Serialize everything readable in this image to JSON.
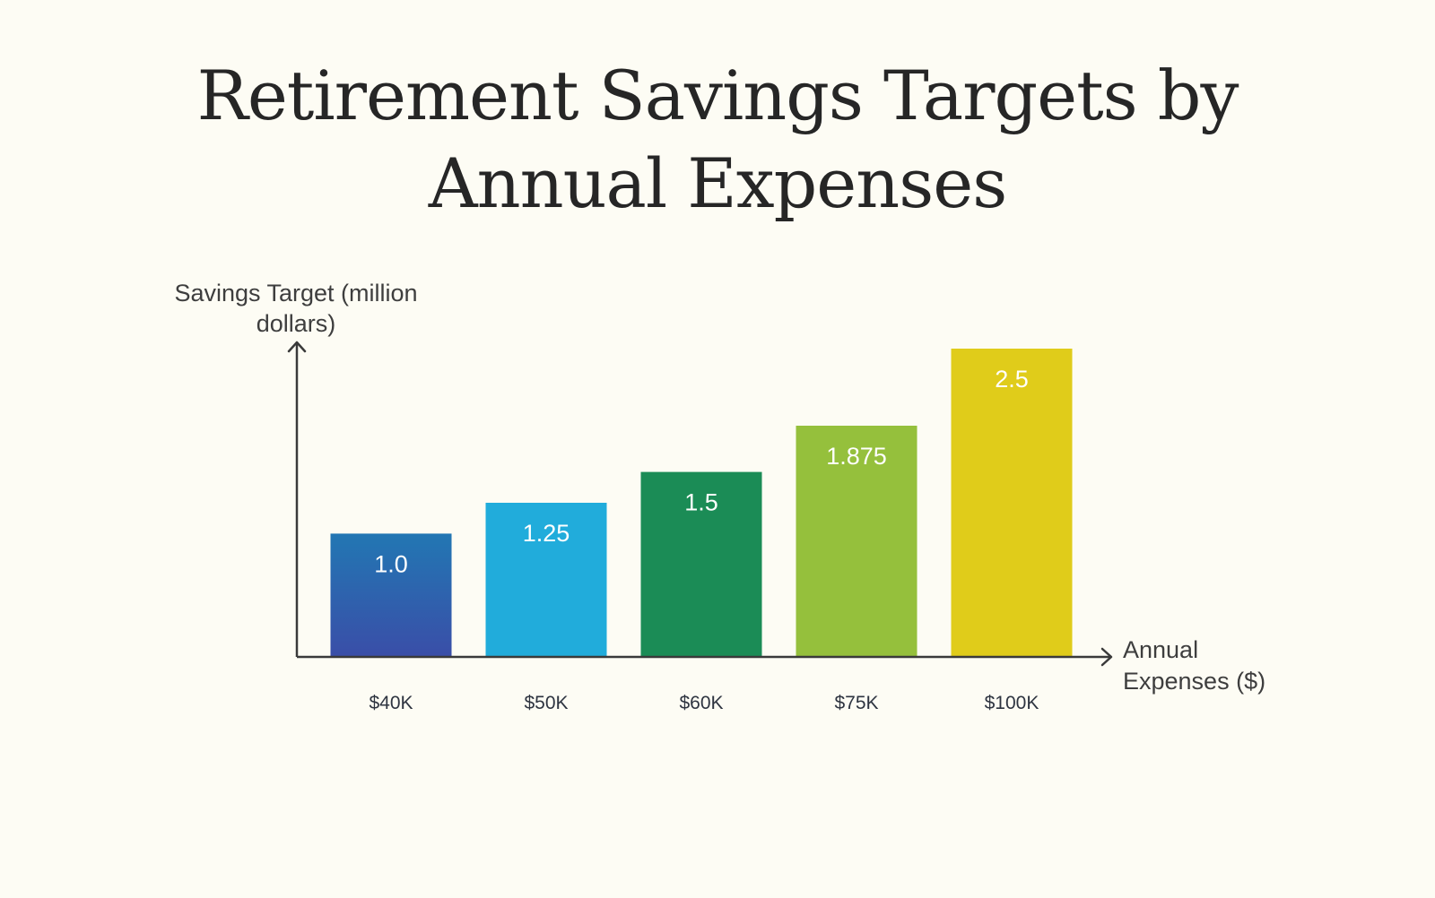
{
  "chart_data": {
    "type": "bar",
    "title_lines": [
      "Retirement Savings Targets by",
      "Annual Expenses"
    ],
    "ylabel_lines": [
      "Savings Target (million",
      "dollars)"
    ],
    "xlabel_lines": [
      "Annual",
      "Expenses ($)"
    ],
    "categories": [
      "$40K",
      "$50K",
      "$60K",
      "$75K",
      "$100K"
    ],
    "values": [
      1.0,
      1.25,
      1.5,
      1.875,
      2.5
    ],
    "data_labels": [
      "1.0",
      "1.25",
      "1.5",
      "1.875",
      "2.5"
    ],
    "colors": [
      [
        "#2277b3",
        "#3a4ea8"
      ],
      [
        "#21acdb",
        "#21acdb"
      ],
      [
        "#1b8c56",
        "#1b8c56"
      ],
      [
        "#95c03c",
        "#95c03c"
      ],
      [
        "#e0cc1a",
        "#e0cc1a"
      ]
    ],
    "ylim": [
      0,
      2.5
    ],
    "grid": false,
    "legend": "none",
    "axis_color": "#3a3a3a",
    "background": "#fdfcf4"
  }
}
